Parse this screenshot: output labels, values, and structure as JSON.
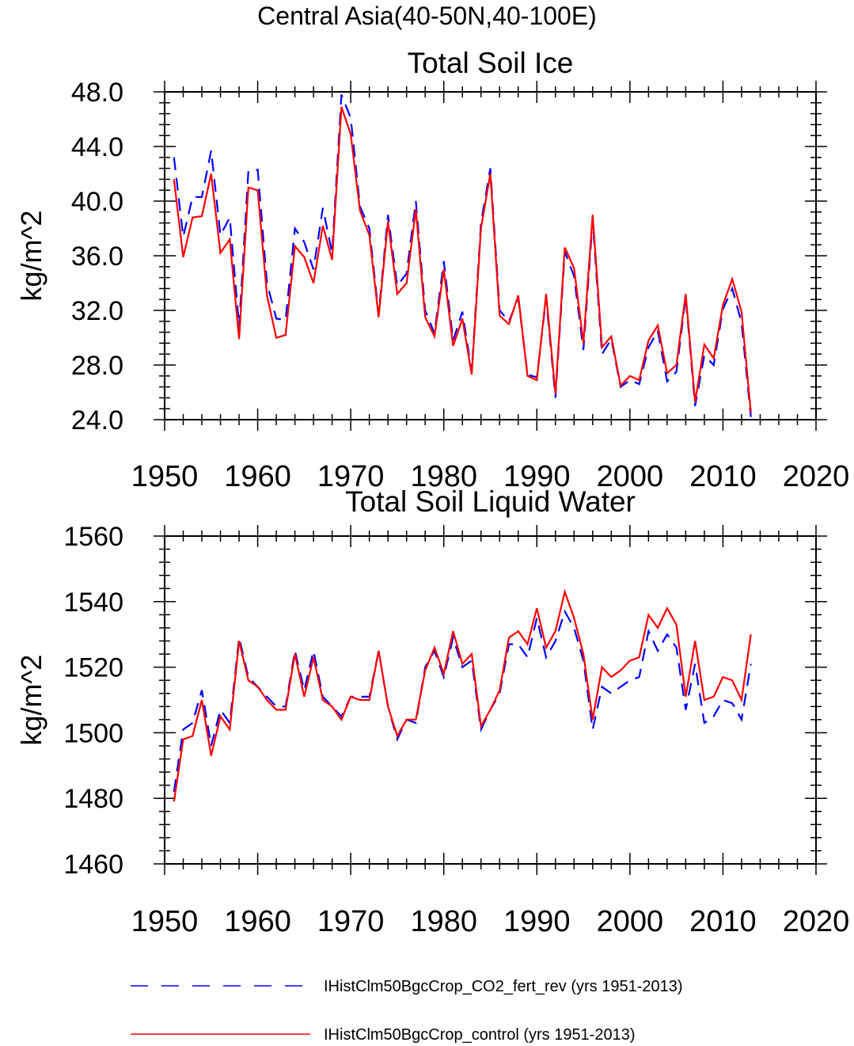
{
  "figure_title": "Central Asia(40-50N,40-100E)",
  "colors": {
    "exp": "#0000ff",
    "ctl": "#ff0000",
    "axes": "#000000"
  },
  "legend": [
    {
      "label": "IHistClm50BgcCrop_CO2_fert_rev (yrs 1951-2013)",
      "color": "#0000ff",
      "style": "dashed"
    },
    {
      "label": "IHistClm50BgcCrop_control (yrs 1951-2013)",
      "color": "#ff0000",
      "style": "solid"
    }
  ],
  "chart_data": [
    {
      "type": "line",
      "title": "Total Soil Ice",
      "xlabel": "",
      "ylabel": "kg/m^2",
      "xlim": [
        1950,
        2020
      ],
      "ylim": [
        24,
        48
      ],
      "xticks": [
        1950,
        1960,
        1970,
        1980,
        1990,
        2000,
        2010,
        2020
      ],
      "ytick_labels": [
        "24.0",
        "28.0",
        "32.0",
        "36.0",
        "40.0",
        "44.0",
        "48.0"
      ],
      "yticks": [
        24,
        28,
        32,
        36,
        40,
        44,
        48
      ],
      "y_minor_step": 0.8,
      "x_minor_step": 2,
      "x": [
        1951,
        1952,
        1953,
        1954,
        1955,
        1956,
        1957,
        1958,
        1959,
        1960,
        1961,
        1962,
        1963,
        1964,
        1965,
        1966,
        1967,
        1968,
        1969,
        1970,
        1971,
        1972,
        1973,
        1974,
        1975,
        1976,
        1977,
        1978,
        1979,
        1980,
        1981,
        1982,
        1983,
        1984,
        1985,
        1986,
        1987,
        1988,
        1989,
        1990,
        1991,
        1992,
        1993,
        1994,
        1995,
        1996,
        1997,
        1998,
        1999,
        2000,
        2001,
        2002,
        2003,
        2004,
        2005,
        2006,
        2007,
        2008,
        2009,
        2010,
        2011,
        2012,
        2013
      ],
      "series": [
        {
          "name": "IHistClm50BgcCrop_CO2_fert_rev (yrs 1951-2013)",
          "color": "#0000ff",
          "style": "dashed",
          "values": [
            43.2,
            37.4,
            40.3,
            40.3,
            43.7,
            37.5,
            38.8,
            30.8,
            42.2,
            42.3,
            34.0,
            31.4,
            31.3,
            38.0,
            37.0,
            35.0,
            39.5,
            36.2,
            47.8,
            46.1,
            39.6,
            38.0,
            31.7,
            39.0,
            33.8,
            34.7,
            40.0,
            32.0,
            30.3,
            35.6,
            29.8,
            31.9,
            27.5,
            38.4,
            42.4,
            32.0,
            31.2,
            32.9,
            27.3,
            27.1,
            32.9,
            25.6,
            36.3,
            34.5,
            29.1,
            38.6,
            28.8,
            29.9,
            26.4,
            26.9,
            26.6,
            29.3,
            30.5,
            26.8,
            27.5,
            33.0,
            25.0,
            28.7,
            28.0,
            32.1,
            33.6,
            31.1,
            24.2
          ]
        },
        {
          "name": "IHistClm50BgcCrop_control (yrs 1951-2013)",
          "color": "#ff0000",
          "style": "solid",
          "values": [
            41.6,
            35.9,
            38.8,
            38.9,
            42.0,
            36.2,
            37.2,
            29.9,
            41.0,
            40.8,
            33.1,
            30.0,
            30.2,
            36.7,
            35.9,
            34.0,
            38.2,
            35.7,
            46.9,
            44.9,
            39.3,
            37.5,
            31.5,
            38.5,
            33.2,
            34.0,
            39.4,
            31.5,
            30.1,
            35.0,
            29.4,
            31.4,
            27.3,
            38.0,
            42.0,
            31.6,
            31.0,
            33.1,
            27.2,
            26.9,
            33.2,
            25.9,
            36.6,
            35.1,
            29.6,
            39.0,
            29.3,
            30.1,
            26.5,
            27.2,
            26.9,
            29.8,
            30.9,
            27.4,
            28.0,
            33.2,
            25.3,
            29.5,
            28.5,
            32.4,
            34.3,
            31.9,
            24.5
          ]
        }
      ]
    },
    {
      "type": "line",
      "title": "Total Soil Liquid Water",
      "xlabel": "",
      "ylabel": "kg/m^2",
      "xlim": [
        1950,
        2020
      ],
      "ylim": [
        1460,
        1560
      ],
      "xticks": [
        1950,
        1960,
        1970,
        1980,
        1990,
        2000,
        2010,
        2020
      ],
      "ytick_labels": [
        "1460",
        "1480",
        "1500",
        "1520",
        "1540",
        "1560"
      ],
      "yticks": [
        1460,
        1480,
        1500,
        1520,
        1540,
        1560
      ],
      "y_minor_step": 4,
      "x_minor_step": 2,
      "x": [
        1951,
        1952,
        1953,
        1954,
        1955,
        1956,
        1957,
        1958,
        1959,
        1960,
        1961,
        1962,
        1963,
        1964,
        1965,
        1966,
        1967,
        1968,
        1969,
        1970,
        1971,
        1972,
        1973,
        1974,
        1975,
        1976,
        1977,
        1978,
        1979,
        1980,
        1981,
        1982,
        1983,
        1984,
        1985,
        1986,
        1987,
        1988,
        1989,
        1990,
        1991,
        1992,
        1993,
        1994,
        1995,
        1996,
        1997,
        1998,
        1999,
        2000,
        2001,
        2002,
        2003,
        2004,
        2005,
        2006,
        2007,
        2008,
        2009,
        2010,
        2011,
        2012,
        2013
      ],
      "series": [
        {
          "name": "IHistClm50BgcCrop_CO2_fert_rev (yrs 1951-2013)",
          "color": "#0000ff",
          "style": "dashed",
          "values": [
            1482,
            1501,
            1503,
            1513,
            1496,
            1507,
            1503,
            1529,
            1517,
            1514,
            1511,
            1508,
            1508,
            1525,
            1513,
            1525,
            1511,
            1508,
            1505,
            1511,
            1511,
            1511,
            1525,
            1508,
            1498,
            1504,
            1503,
            1520,
            1525,
            1517,
            1529,
            1520,
            1522,
            1501,
            1507,
            1512,
            1527,
            1527,
            1523,
            1535,
            1523,
            1528,
            1537,
            1532,
            1522,
            1501,
            1514,
            1512,
            1514,
            1516,
            1517,
            1531,
            1525,
            1530,
            1526,
            1507,
            1521,
            1503,
            1505,
            1510,
            1509,
            1504,
            1521
          ]
        },
        {
          "name": "IHistClm50BgcCrop_control (yrs 1951-2013)",
          "color": "#ff0000",
          "style": "solid",
          "values": [
            1479,
            1498,
            1499,
            1510,
            1493,
            1505,
            1501,
            1528,
            1516,
            1514,
            1510,
            1507,
            1507,
            1524,
            1511,
            1523,
            1510,
            1508,
            1504,
            1511,
            1510,
            1510,
            1525,
            1508,
            1499,
            1504,
            1504,
            1519,
            1526,
            1518,
            1531,
            1521,
            1524,
            1502,
            1507,
            1513,
            1529,
            1531,
            1527,
            1538,
            1526,
            1531,
            1543,
            1535,
            1524,
            1504,
            1520,
            1517,
            1519,
            1522,
            1523,
            1536,
            1532,
            1538,
            1533,
            1511,
            1528,
            1510,
            1511,
            1517,
            1516,
            1510,
            1530
          ]
        }
      ]
    }
  ]
}
